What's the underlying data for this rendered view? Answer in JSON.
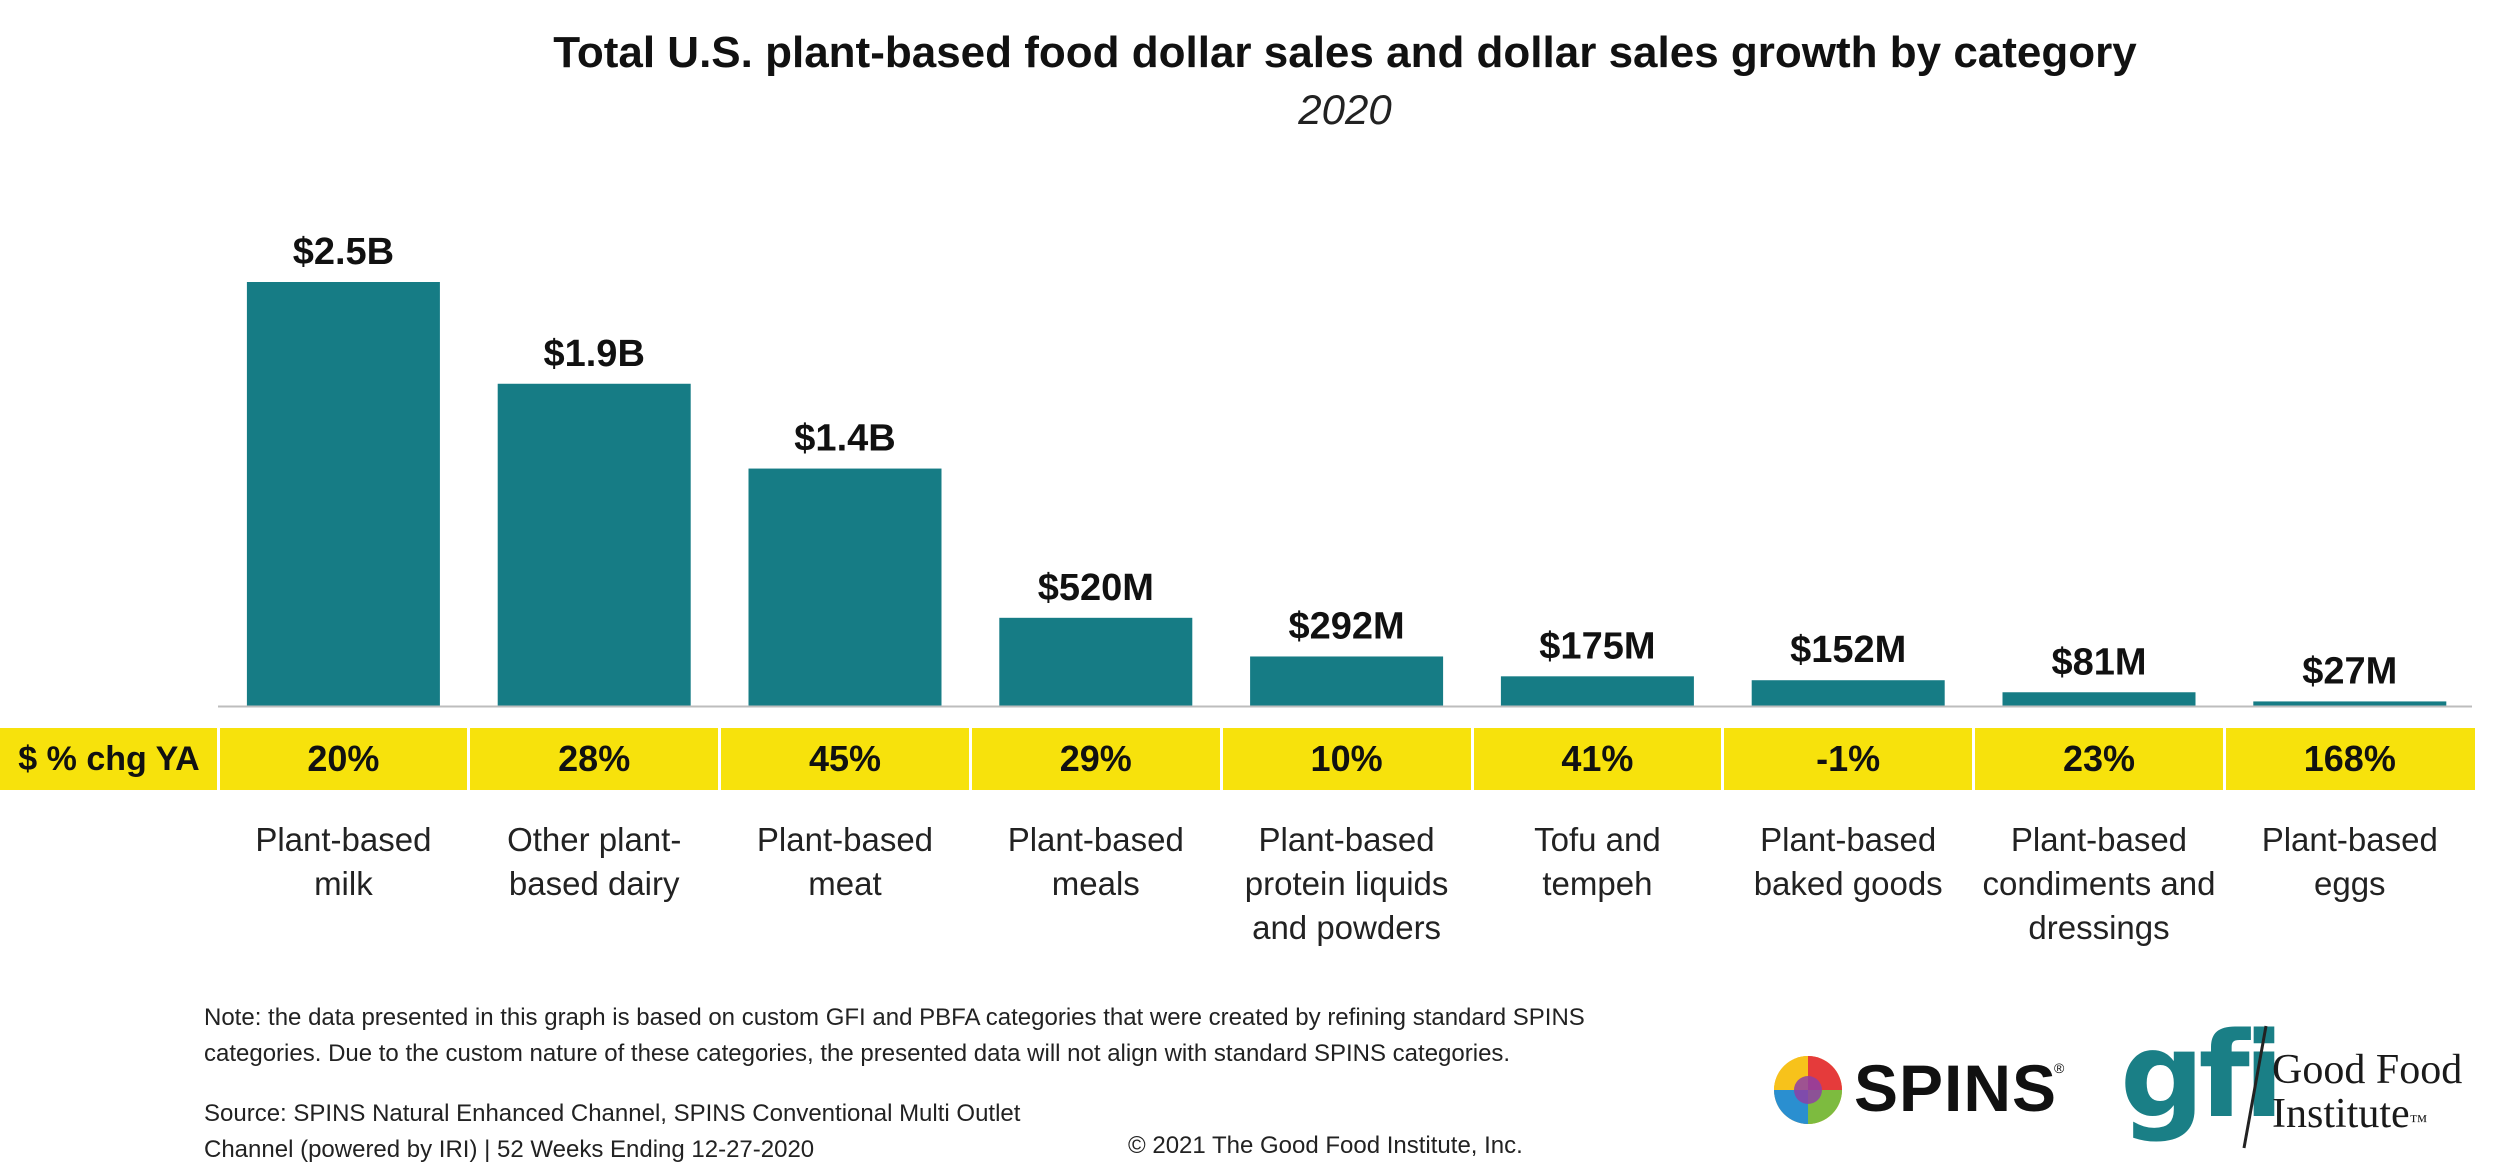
{
  "chart_data": {
    "type": "bar",
    "title": "Total U.S. plant-based food dollar sales and dollar sales growth by category",
    "subtitle": "2020",
    "categories": [
      "Plant-based milk",
      "Other plant-based dairy",
      "Plant-based meat",
      "Plant-based meals",
      "Plant-based protein liquids and powders",
      "Tofu and tempeh",
      "Plant-based baked goods",
      "Plant-based condiments and dressings",
      "Plant-based eggs"
    ],
    "category_lines": [
      [
        "Plant-based",
        "milk"
      ],
      [
        "Other plant-",
        "based dairy"
      ],
      [
        "Plant-based",
        "meat"
      ],
      [
        "Plant-based",
        "meals"
      ],
      [
        "Plant-based",
        "protein liquids",
        "and powders"
      ],
      [
        "Tofu and",
        "tempeh"
      ],
      [
        "Plant-based",
        "baked goods"
      ],
      [
        "Plant-based",
        "condiments and",
        "dressings"
      ],
      [
        "Plant-based",
        "eggs"
      ]
    ],
    "values": [
      2500,
      1900,
      1400,
      520,
      292,
      175,
      152,
      81,
      27
    ],
    "value_unit": "$M",
    "value_labels": [
      "$2.5B",
      "$1.9B",
      "$1.4B",
      "$520M",
      "$292M",
      "$175M",
      "$152M",
      "$81M",
      "$27M"
    ],
    "growth_row_label": "$ % chg YA",
    "growth_values": [
      20,
      28,
      45,
      29,
      10,
      41,
      -1,
      23,
      168
    ],
    "growth_labels": [
      "20%",
      "28%",
      "45%",
      "29%",
      "10%",
      "41%",
      "-1%",
      "23%",
      "168%"
    ],
    "ylim": [
      0,
      2500
    ],
    "colors": {
      "bar": "#167c85",
      "band": "#f7e20c"
    }
  },
  "footer": {
    "note": "Note: the data presented in this graph is based on custom GFI and PBFA categories that were created by refining standard SPINS categories. Due to the custom nature of these categories, the presented data will not align with standard SPINS categories.",
    "source_line1": "Source: SPINS Natural Enhanced Channel, SPINS Conventional Multi Outlet",
    "source_line2": "Channel (powered by IRI) | 52 Weeks Ending 12-27-2020",
    "copyright": "© 2021 The Good Food Institute, Inc."
  },
  "logos": {
    "spins": {
      "text": "SPINS",
      "reg": "®"
    },
    "gfi": {
      "mark": "gfi",
      "name_line1": "Good Food",
      "name_line2": "Institute",
      "tm": "™"
    }
  }
}
